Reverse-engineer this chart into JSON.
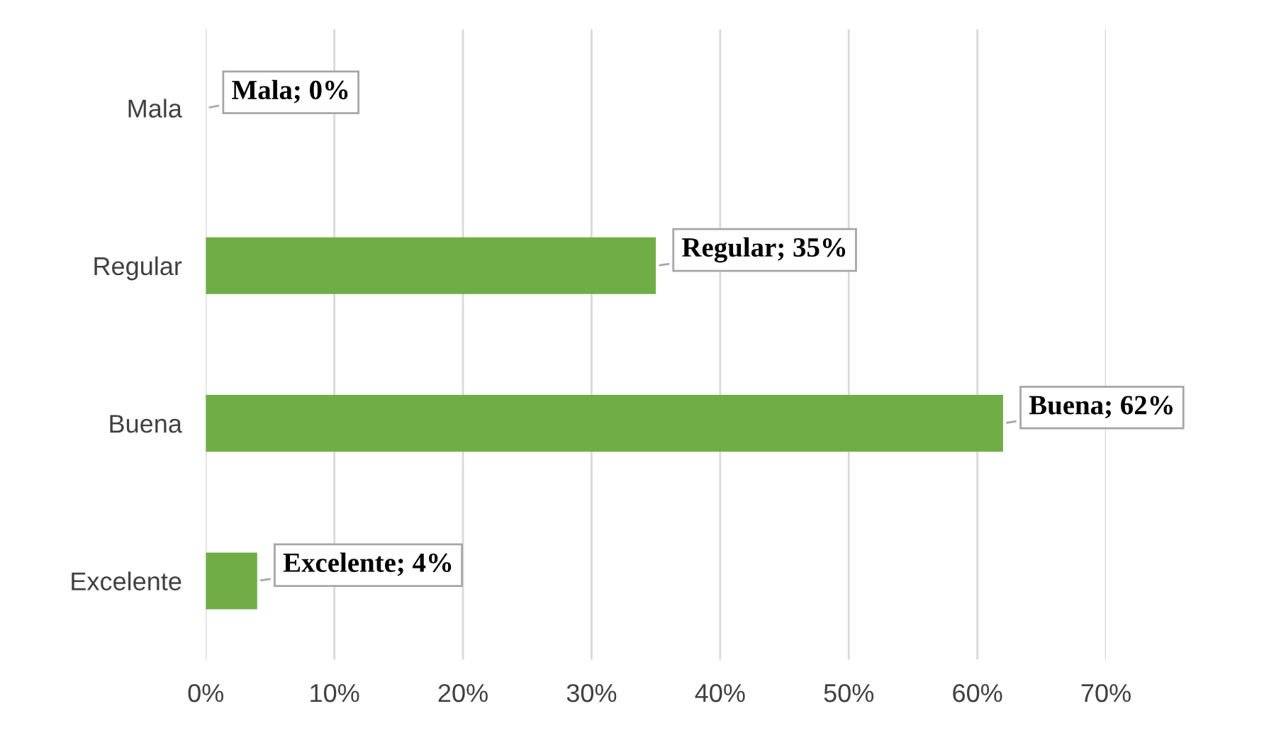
{
  "chart_data": {
    "type": "bar",
    "orientation": "horizontal",
    "categories": [
      "Mala",
      "Regular",
      "Buena",
      "Excelente"
    ],
    "values": [
      0,
      35,
      62,
      4
    ],
    "value_labels": [
      "Mala; 0%",
      "Regular; 35%",
      "Buena; 62%",
      "Excelente; 4%"
    ],
    "color": "#70ad47",
    "xlim": [
      0,
      70
    ],
    "xticks": [
      {
        "value": 0,
        "label": "0%"
      },
      {
        "value": 10,
        "label": "10%"
      },
      {
        "value": 20,
        "label": "20%"
      },
      {
        "value": 30,
        "label": "30%"
      },
      {
        "value": 40,
        "label": "40%"
      },
      {
        "value": 50,
        "label": "50%"
      },
      {
        "value": 60,
        "label": "60%"
      },
      {
        "value": 70,
        "label": "70%"
      }
    ],
    "grid": "x"
  }
}
